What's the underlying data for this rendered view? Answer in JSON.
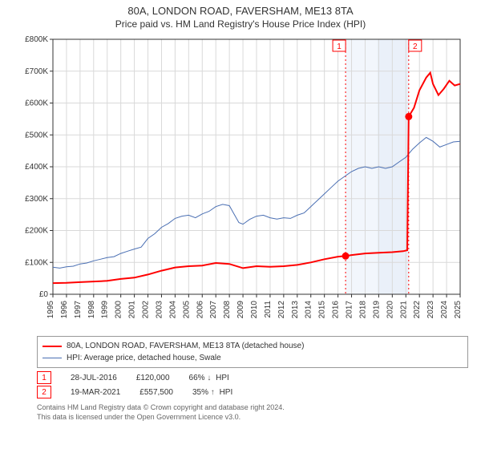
{
  "title": "80A, LONDON ROAD, FAVERSHAM, ME13 8TA",
  "subtitle": "Price paid vs. HM Land Registry's House Price Index (HPI)",
  "colors": {
    "property": "#ff0000",
    "hpi": "#4a6fb3",
    "grid": "#d9d9d9",
    "axis": "#333333",
    "marker_dash": "#ff0000",
    "band1": "#f2f6fc",
    "band2": "#eaf0f9",
    "bg": "#ffffff",
    "marker_border": "#ff0000",
    "arrow": "#555555"
  },
  "axes": {
    "x": {
      "min": 1995,
      "max": 2025,
      "ticks": [
        1995,
        1996,
        1997,
        1998,
        1999,
        2000,
        2001,
        2002,
        2003,
        2004,
        2005,
        2006,
        2007,
        2008,
        2009,
        2010,
        2011,
        2012,
        2013,
        2014,
        2015,
        2016,
        2017,
        2018,
        2019,
        2020,
        2021,
        2022,
        2023,
        2024,
        2025
      ],
      "label_fontsize": 10
    },
    "y": {
      "min": 0,
      "max": 800000,
      "ticks": [
        0,
        100000,
        200000,
        300000,
        400000,
        500000,
        600000,
        700000,
        800000
      ],
      "labels": [
        "£0",
        "£100K",
        "£200K",
        "£300K",
        "£400K",
        "£500K",
        "£600K",
        "£700K",
        "£800K"
      ],
      "label_fontsize": 10
    }
  },
  "bands": [
    {
      "from": 2016.56,
      "to": 2021.21,
      "color": "band1"
    },
    {
      "from": 2018.9,
      "to": 2021.21,
      "color": "band2"
    }
  ],
  "markers": [
    {
      "n": 1,
      "x": 2016.56,
      "y": 120000
    },
    {
      "n": 2,
      "x": 2021.21,
      "y": 557500
    }
  ],
  "series": {
    "hpi": [
      [
        1995.0,
        85000
      ],
      [
        1995.5,
        82000
      ],
      [
        1996.0,
        86000
      ],
      [
        1996.5,
        88000
      ],
      [
        1997.0,
        95000
      ],
      [
        1997.5,
        98000
      ],
      [
        1998.0,
        105000
      ],
      [
        1998.5,
        110000
      ],
      [
        1999.0,
        115000
      ],
      [
        1999.5,
        118000
      ],
      [
        2000.0,
        128000
      ],
      [
        2000.5,
        135000
      ],
      [
        2001.0,
        142000
      ],
      [
        2001.5,
        148000
      ],
      [
        2002.0,
        175000
      ],
      [
        2002.5,
        190000
      ],
      [
        2003.0,
        210000
      ],
      [
        2003.5,
        222000
      ],
      [
        2004.0,
        238000
      ],
      [
        2004.5,
        245000
      ],
      [
        2005.0,
        248000
      ],
      [
        2005.5,
        240000
      ],
      [
        2006.0,
        252000
      ],
      [
        2006.5,
        260000
      ],
      [
        2007.0,
        275000
      ],
      [
        2007.5,
        282000
      ],
      [
        2008.0,
        278000
      ],
      [
        2008.3,
        255000
      ],
      [
        2008.7,
        225000
      ],
      [
        2009.0,
        220000
      ],
      [
        2009.5,
        235000
      ],
      [
        2010.0,
        245000
      ],
      [
        2010.5,
        248000
      ],
      [
        2011.0,
        240000
      ],
      [
        2011.5,
        236000
      ],
      [
        2012.0,
        240000
      ],
      [
        2012.5,
        238000
      ],
      [
        2013.0,
        248000
      ],
      [
        2013.5,
        255000
      ],
      [
        2014.0,
        275000
      ],
      [
        2014.5,
        295000
      ],
      [
        2015.0,
        315000
      ],
      [
        2015.5,
        335000
      ],
      [
        2016.0,
        355000
      ],
      [
        2016.5,
        370000
      ],
      [
        2017.0,
        385000
      ],
      [
        2017.5,
        395000
      ],
      [
        2018.0,
        400000
      ],
      [
        2018.5,
        395000
      ],
      [
        2019.0,
        400000
      ],
      [
        2019.5,
        395000
      ],
      [
        2020.0,
        400000
      ],
      [
        2020.5,
        415000
      ],
      [
        2021.0,
        430000
      ],
      [
        2021.5,
        455000
      ],
      [
        2022.0,
        475000
      ],
      [
        2022.5,
        492000
      ],
      [
        2023.0,
        480000
      ],
      [
        2023.5,
        462000
      ],
      [
        2024.0,
        470000
      ],
      [
        2024.5,
        478000
      ],
      [
        2025.0,
        480000
      ]
    ],
    "property": [
      [
        1995.0,
        35000
      ],
      [
        1996.0,
        36000
      ],
      [
        1997.0,
        38000
      ],
      [
        1998.0,
        40000
      ],
      [
        1999.0,
        42000
      ],
      [
        2000.0,
        48000
      ],
      [
        2001.0,
        52000
      ],
      [
        2002.0,
        62000
      ],
      [
        2003.0,
        74000
      ],
      [
        2004.0,
        84000
      ],
      [
        2005.0,
        88000
      ],
      [
        2006.0,
        90000
      ],
      [
        2007.0,
        98000
      ],
      [
        2008.0,
        95000
      ],
      [
        2009.0,
        82000
      ],
      [
        2010.0,
        88000
      ],
      [
        2011.0,
        86000
      ],
      [
        2012.0,
        88000
      ],
      [
        2013.0,
        92000
      ],
      [
        2014.0,
        100000
      ],
      [
        2015.0,
        110000
      ],
      [
        2016.0,
        118000
      ],
      [
        2016.56,
        120000
      ],
      [
        2017.0,
        123000
      ],
      [
        2018.0,
        128000
      ],
      [
        2019.0,
        130000
      ],
      [
        2020.0,
        132000
      ],
      [
        2020.8,
        135000
      ],
      [
        2021.1,
        138000
      ],
      [
        2021.21,
        557500
      ],
      [
        2021.6,
        585000
      ],
      [
        2022.0,
        640000
      ],
      [
        2022.5,
        680000
      ],
      [
        2022.8,
        695000
      ],
      [
        2023.0,
        660000
      ],
      [
        2023.4,
        625000
      ],
      [
        2023.8,
        645000
      ],
      [
        2024.2,
        670000
      ],
      [
        2024.6,
        655000
      ],
      [
        2025.0,
        660000
      ]
    ]
  },
  "legend": [
    {
      "label": "80A, LONDON ROAD, FAVERSHAM, ME13 8TA (detached house)",
      "color": "property",
      "width": 2
    },
    {
      "label": "HPI: Average price, detached house, Swale",
      "color": "hpi",
      "width": 1
    }
  ],
  "events": [
    {
      "n": "1",
      "date": "28-JUL-2016",
      "price": "£120,000",
      "pct": "66%",
      "dir": "down",
      "suffix": "HPI"
    },
    {
      "n": "2",
      "date": "19-MAR-2021",
      "price": "£557,500",
      "pct": "35%",
      "dir": "up",
      "suffix": "HPI"
    }
  ],
  "footer": [
    "Contains HM Land Registry data © Crown copyright and database right 2024.",
    "This data is licensed under the Open Government Licence v3.0."
  ],
  "style": {
    "line_width_property": 2,
    "line_width_hpi": 1,
    "marker_radius": 4,
    "marker_label_fontsize": 10,
    "title_fontsize": 13,
    "subtitle_fontsize": 12
  }
}
